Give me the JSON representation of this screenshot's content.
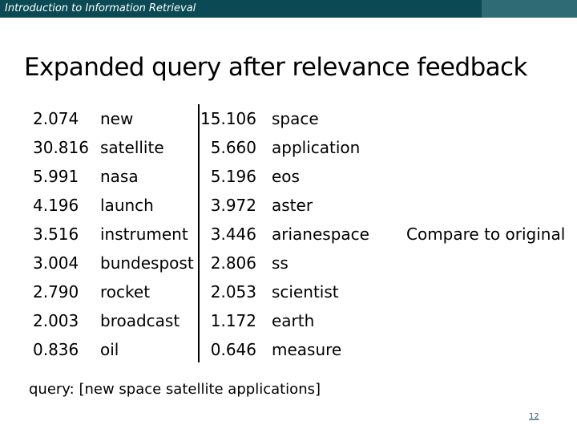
{
  "header": {
    "course_title": "Introduction to Information Retrieval",
    "bar_color": "#0b4a55",
    "accent_color": "#2f6b74"
  },
  "slide": {
    "title": "Expanded query after relevance feedback",
    "left_column": [
      {
        "weight": "2.074",
        "term": "new"
      },
      {
        "weight": "30.816",
        "term": "satellite"
      },
      {
        "weight": "5.991",
        "term": "nasa"
      },
      {
        "weight": "4.196",
        "term": "launch"
      },
      {
        "weight": "3.516",
        "term": "instrument"
      },
      {
        "weight": "3.004",
        "term": "bundespost"
      },
      {
        "weight": "2.790",
        "term": "rocket"
      },
      {
        "weight": "2.003",
        "term": "broadcast"
      },
      {
        "weight": "0.836",
        "term": "oil"
      }
    ],
    "right_column": [
      {
        "weight": "15.106",
        "term": "space"
      },
      {
        "weight": "5.660",
        "term": "application"
      },
      {
        "weight": "5.196",
        "term": "eos"
      },
      {
        "weight": "3.972",
        "term": "aster"
      },
      {
        "weight": "3.446",
        "term": "arianespace"
      },
      {
        "weight": "2.806",
        "term": "ss"
      },
      {
        "weight": "2.053",
        "term": "scientist"
      },
      {
        "weight": "1.172",
        "term": "earth"
      },
      {
        "weight": "0.646",
        "term": "measure"
      }
    ],
    "compare_note": "Compare to original",
    "query_text": "query: [new space satellite applications]",
    "page_number": "12"
  }
}
